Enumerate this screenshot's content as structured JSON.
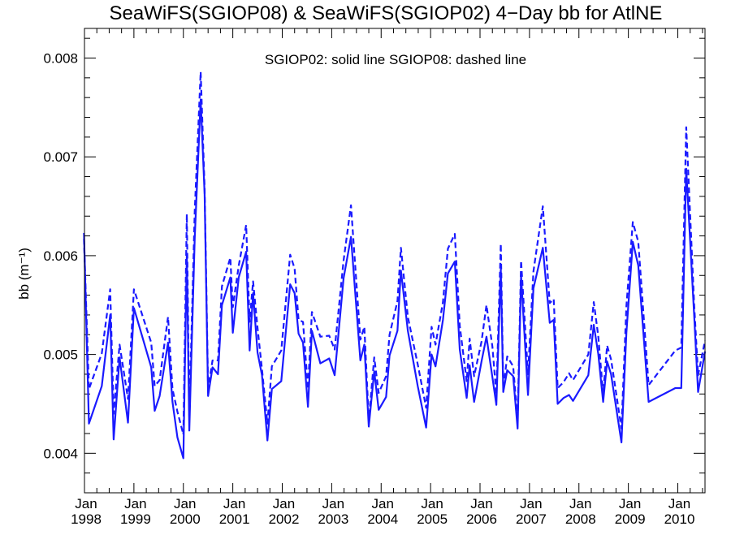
{
  "chart_data": {
    "type": "line",
    "title": "SeaWiFS(SGIOP08) & SeaWiFS(SGIOP02) 4−Day bb for AtlNE",
    "ylabel": "bb (m⁻¹)",
    "xlabel": "",
    "annotation": "SGIOP02: solid line   SGIOP08: dashed line",
    "xlim": [
      1998.0,
      2010.55
    ],
    "ylim": [
      0.0036,
      0.0083
    ],
    "grid": false,
    "x_ticks": [
      {
        "value": 1998,
        "month": "Jan",
        "year": "1998"
      },
      {
        "value": 1999,
        "month": "Jan",
        "year": "1999"
      },
      {
        "value": 2000,
        "month": "Jan",
        "year": "2000"
      },
      {
        "value": 2001,
        "month": "Jan",
        "year": "2001"
      },
      {
        "value": 2002,
        "month": "Jan",
        "year": "2002"
      },
      {
        "value": 2003,
        "month": "Jan",
        "year": "2003"
      },
      {
        "value": 2004,
        "month": "Jan",
        "year": "2004"
      },
      {
        "value": 2005,
        "month": "Jan",
        "year": "2005"
      },
      {
        "value": 2006,
        "month": "Jan",
        "year": "2006"
      },
      {
        "value": 2007,
        "month": "Jan",
        "year": "2007"
      },
      {
        "value": 2008,
        "month": "Jan",
        "year": "2008"
      },
      {
        "value": 2009,
        "month": "Jan",
        "year": "2009"
      },
      {
        "value": 2010,
        "month": "Jan",
        "year": "2010"
      }
    ],
    "y_ticks": [
      {
        "value": 0.004,
        "label": "0.004"
      },
      {
        "value": 0.005,
        "label": "0.005"
      },
      {
        "value": 0.006,
        "label": "0.006"
      },
      {
        "value": 0.007,
        "label": "0.007"
      },
      {
        "value": 0.008,
        "label": "0.008"
      }
    ],
    "series": [
      {
        "name": "SGIOP02",
        "style": "solid",
        "color": "#1a1aff",
        "points": [
          [
            1997.99,
            0.00623
          ],
          [
            1998.09,
            0.0043
          ],
          [
            1998.35,
            0.00468
          ],
          [
            1998.52,
            0.0054
          ],
          [
            1998.59,
            0.00414
          ],
          [
            1998.71,
            0.00497
          ],
          [
            1998.88,
            0.00431
          ],
          [
            1999.0,
            0.00547
          ],
          [
            1999.35,
            0.00487
          ],
          [
            1999.42,
            0.00443
          ],
          [
            1999.52,
            0.00458
          ],
          [
            1999.69,
            0.00512
          ],
          [
            1999.78,
            0.00452
          ],
          [
            1999.88,
            0.00416
          ],
          [
            2000.0,
            0.00395
          ],
          [
            2000.07,
            0.00601
          ],
          [
            2000.12,
            0.00423
          ],
          [
            2000.23,
            0.00618
          ],
          [
            2000.35,
            0.00758
          ],
          [
            2000.43,
            0.00662
          ],
          [
            2000.5,
            0.00458
          ],
          [
            2000.59,
            0.00487
          ],
          [
            2000.7,
            0.0048
          ],
          [
            2000.78,
            0.0055
          ],
          [
            2000.95,
            0.00578
          ],
          [
            2001.0,
            0.00522
          ],
          [
            2001.12,
            0.00578
          ],
          [
            2001.27,
            0.00604
          ],
          [
            2001.34,
            0.00504
          ],
          [
            2001.41,
            0.00562
          ],
          [
            2001.5,
            0.00502
          ],
          [
            2001.59,
            0.00479
          ],
          [
            2001.7,
            0.00413
          ],
          [
            2001.79,
            0.00465
          ],
          [
            2001.98,
            0.00473
          ],
          [
            2002.16,
            0.00571
          ],
          [
            2002.25,
            0.00562
          ],
          [
            2002.33,
            0.00521
          ],
          [
            2002.42,
            0.00512
          ],
          [
            2002.52,
            0.00447
          ],
          [
            2002.6,
            0.00524
          ],
          [
            2002.77,
            0.00491
          ],
          [
            2002.95,
            0.00496
          ],
          [
            2003.06,
            0.00479
          ],
          [
            2003.24,
            0.00577
          ],
          [
            2003.39,
            0.00619
          ],
          [
            2003.58,
            0.00494
          ],
          [
            2003.66,
            0.0051
          ],
          [
            2003.75,
            0.00427
          ],
          [
            2003.86,
            0.00483
          ],
          [
            2003.95,
            0.00444
          ],
          [
            2004.1,
            0.00457
          ],
          [
            2004.17,
            0.00499
          ],
          [
            2004.33,
            0.00524
          ],
          [
            2004.4,
            0.00585
          ],
          [
            2004.54,
            0.00524
          ],
          [
            2004.74,
            0.00468
          ],
          [
            2004.91,
            0.00426
          ],
          [
            2005.02,
            0.005
          ],
          [
            2005.1,
            0.00488
          ],
          [
            2005.25,
            0.00535
          ],
          [
            2005.35,
            0.00582
          ],
          [
            2005.49,
            0.00594
          ],
          [
            2005.59,
            0.00505
          ],
          [
            2005.73,
            0.00456
          ],
          [
            2005.79,
            0.00489
          ],
          [
            2005.88,
            0.00452
          ],
          [
            2006.03,
            0.00493
          ],
          [
            2006.13,
            0.00518
          ],
          [
            2006.25,
            0.00477
          ],
          [
            2006.33,
            0.00449
          ],
          [
            2006.42,
            0.00586
          ],
          [
            2006.47,
            0.00462
          ],
          [
            2006.55,
            0.00484
          ],
          [
            2006.67,
            0.00478
          ],
          [
            2006.76,
            0.00425
          ],
          [
            2006.83,
            0.0058
          ],
          [
            2006.97,
            0.00459
          ],
          [
            2007.08,
            0.00567
          ],
          [
            2007.27,
            0.00608
          ],
          [
            2007.41,
            0.00532
          ],
          [
            2007.49,
            0.00535
          ],
          [
            2007.57,
            0.0045
          ],
          [
            2007.69,
            0.00456
          ],
          [
            2007.8,
            0.00459
          ],
          [
            2007.88,
            0.00453
          ],
          [
            2008.19,
            0.00479
          ],
          [
            2008.3,
            0.0053
          ],
          [
            2008.39,
            0.00501
          ],
          [
            2008.49,
            0.00452
          ],
          [
            2008.57,
            0.00493
          ],
          [
            2008.65,
            0.0048
          ],
          [
            2008.86,
            0.00411
          ],
          [
            2008.96,
            0.00522
          ],
          [
            2009.09,
            0.00614
          ],
          [
            2009.2,
            0.0059
          ],
          [
            2009.41,
            0.00452
          ],
          [
            2009.95,
            0.00466
          ],
          [
            2010.07,
            0.00466
          ],
          [
            2010.17,
            0.00688
          ],
          [
            2010.33,
            0.0054
          ],
          [
            2010.41,
            0.00462
          ],
          [
            2010.55,
            0.00503
          ]
        ]
      },
      {
        "name": "SGIOP08",
        "style": "dashed",
        "color": "#1a1aff",
        "points": [
          [
            1997.99,
            0.00617
          ],
          [
            1998.09,
            0.00465
          ],
          [
            1998.35,
            0.00501
          ],
          [
            1998.52,
            0.00566
          ],
          [
            1998.59,
            0.0044
          ],
          [
            1998.71,
            0.0051
          ],
          [
            1998.88,
            0.00455
          ],
          [
            1999.0,
            0.00566
          ],
          [
            1999.35,
            0.00512
          ],
          [
            1999.42,
            0.00468
          ],
          [
            1999.52,
            0.00474
          ],
          [
            1999.69,
            0.00538
          ],
          [
            1999.78,
            0.00465
          ],
          [
            1999.88,
            0.00442
          ],
          [
            2000.0,
            0.00419
          ],
          [
            2000.07,
            0.00642
          ],
          [
            2000.12,
            0.00437
          ],
          [
            2000.23,
            0.00645
          ],
          [
            2000.35,
            0.00786
          ],
          [
            2000.43,
            0.00668
          ],
          [
            2000.5,
            0.00466
          ],
          [
            2000.59,
            0.00494
          ],
          [
            2000.7,
            0.00494
          ],
          [
            2000.78,
            0.00569
          ],
          [
            2000.95,
            0.00598
          ],
          [
            2001.0,
            0.00548
          ],
          [
            2001.12,
            0.0059
          ],
          [
            2001.27,
            0.00631
          ],
          [
            2001.34,
            0.00533
          ],
          [
            2001.41,
            0.00574
          ],
          [
            2001.5,
            0.00527
          ],
          [
            2001.59,
            0.00485
          ],
          [
            2001.7,
            0.0043
          ],
          [
            2001.79,
            0.00488
          ],
          [
            2001.98,
            0.00504
          ],
          [
            2002.16,
            0.00601
          ],
          [
            2002.25,
            0.00587
          ],
          [
            2002.33,
            0.00535
          ],
          [
            2002.42,
            0.00533
          ],
          [
            2002.52,
            0.00465
          ],
          [
            2002.6,
            0.00543
          ],
          [
            2002.77,
            0.00518
          ],
          [
            2002.95,
            0.00519
          ],
          [
            2003.06,
            0.00505
          ],
          [
            2003.24,
            0.00595
          ],
          [
            2003.39,
            0.00651
          ],
          [
            2003.58,
            0.00515
          ],
          [
            2003.66,
            0.00528
          ],
          [
            2003.75,
            0.00433
          ],
          [
            2003.86,
            0.00497
          ],
          [
            2003.95,
            0.00461
          ],
          [
            2004.1,
            0.00478
          ],
          [
            2004.17,
            0.0052
          ],
          [
            2004.33,
            0.00554
          ],
          [
            2004.4,
            0.00608
          ],
          [
            2004.54,
            0.00538
          ],
          [
            2004.74,
            0.0049
          ],
          [
            2004.91,
            0.00446
          ],
          [
            2005.02,
            0.00528
          ],
          [
            2005.1,
            0.0051
          ],
          [
            2005.25,
            0.00553
          ],
          [
            2005.35,
            0.00607
          ],
          [
            2005.49,
            0.00622
          ],
          [
            2005.59,
            0.00529
          ],
          [
            2005.73,
            0.00473
          ],
          [
            2005.79,
            0.00516
          ],
          [
            2005.88,
            0.00478
          ],
          [
            2006.03,
            0.00513
          ],
          [
            2006.13,
            0.0055
          ],
          [
            2006.25,
            0.00508
          ],
          [
            2006.33,
            0.00459
          ],
          [
            2006.42,
            0.00612
          ],
          [
            2006.47,
            0.00466
          ],
          [
            2006.55,
            0.00498
          ],
          [
            2006.67,
            0.00488
          ],
          [
            2006.76,
            0.00433
          ],
          [
            2006.83,
            0.00595
          ],
          [
            2006.97,
            0.0048
          ],
          [
            2007.08,
            0.00584
          ],
          [
            2007.27,
            0.0065
          ],
          [
            2007.41,
            0.00552
          ],
          [
            2007.49,
            0.00556
          ],
          [
            2007.57,
            0.00466
          ],
          [
            2007.69,
            0.00472
          ],
          [
            2007.8,
            0.00481
          ],
          [
            2007.88,
            0.00474
          ],
          [
            2008.19,
            0.005
          ],
          [
            2008.3,
            0.00553
          ],
          [
            2008.39,
            0.00519
          ],
          [
            2008.49,
            0.0046
          ],
          [
            2008.57,
            0.00509
          ],
          [
            2008.65,
            0.00495
          ],
          [
            2008.86,
            0.00425
          ],
          [
            2008.96,
            0.00549
          ],
          [
            2009.09,
            0.00634
          ],
          [
            2009.2,
            0.00614
          ],
          [
            2009.41,
            0.00469
          ],
          [
            2009.95,
            0.00504
          ],
          [
            2010.07,
            0.00507
          ],
          [
            2010.17,
            0.0073
          ],
          [
            2010.33,
            0.00551
          ],
          [
            2010.41,
            0.00479
          ],
          [
            2010.55,
            0.00514
          ]
        ]
      }
    ]
  }
}
